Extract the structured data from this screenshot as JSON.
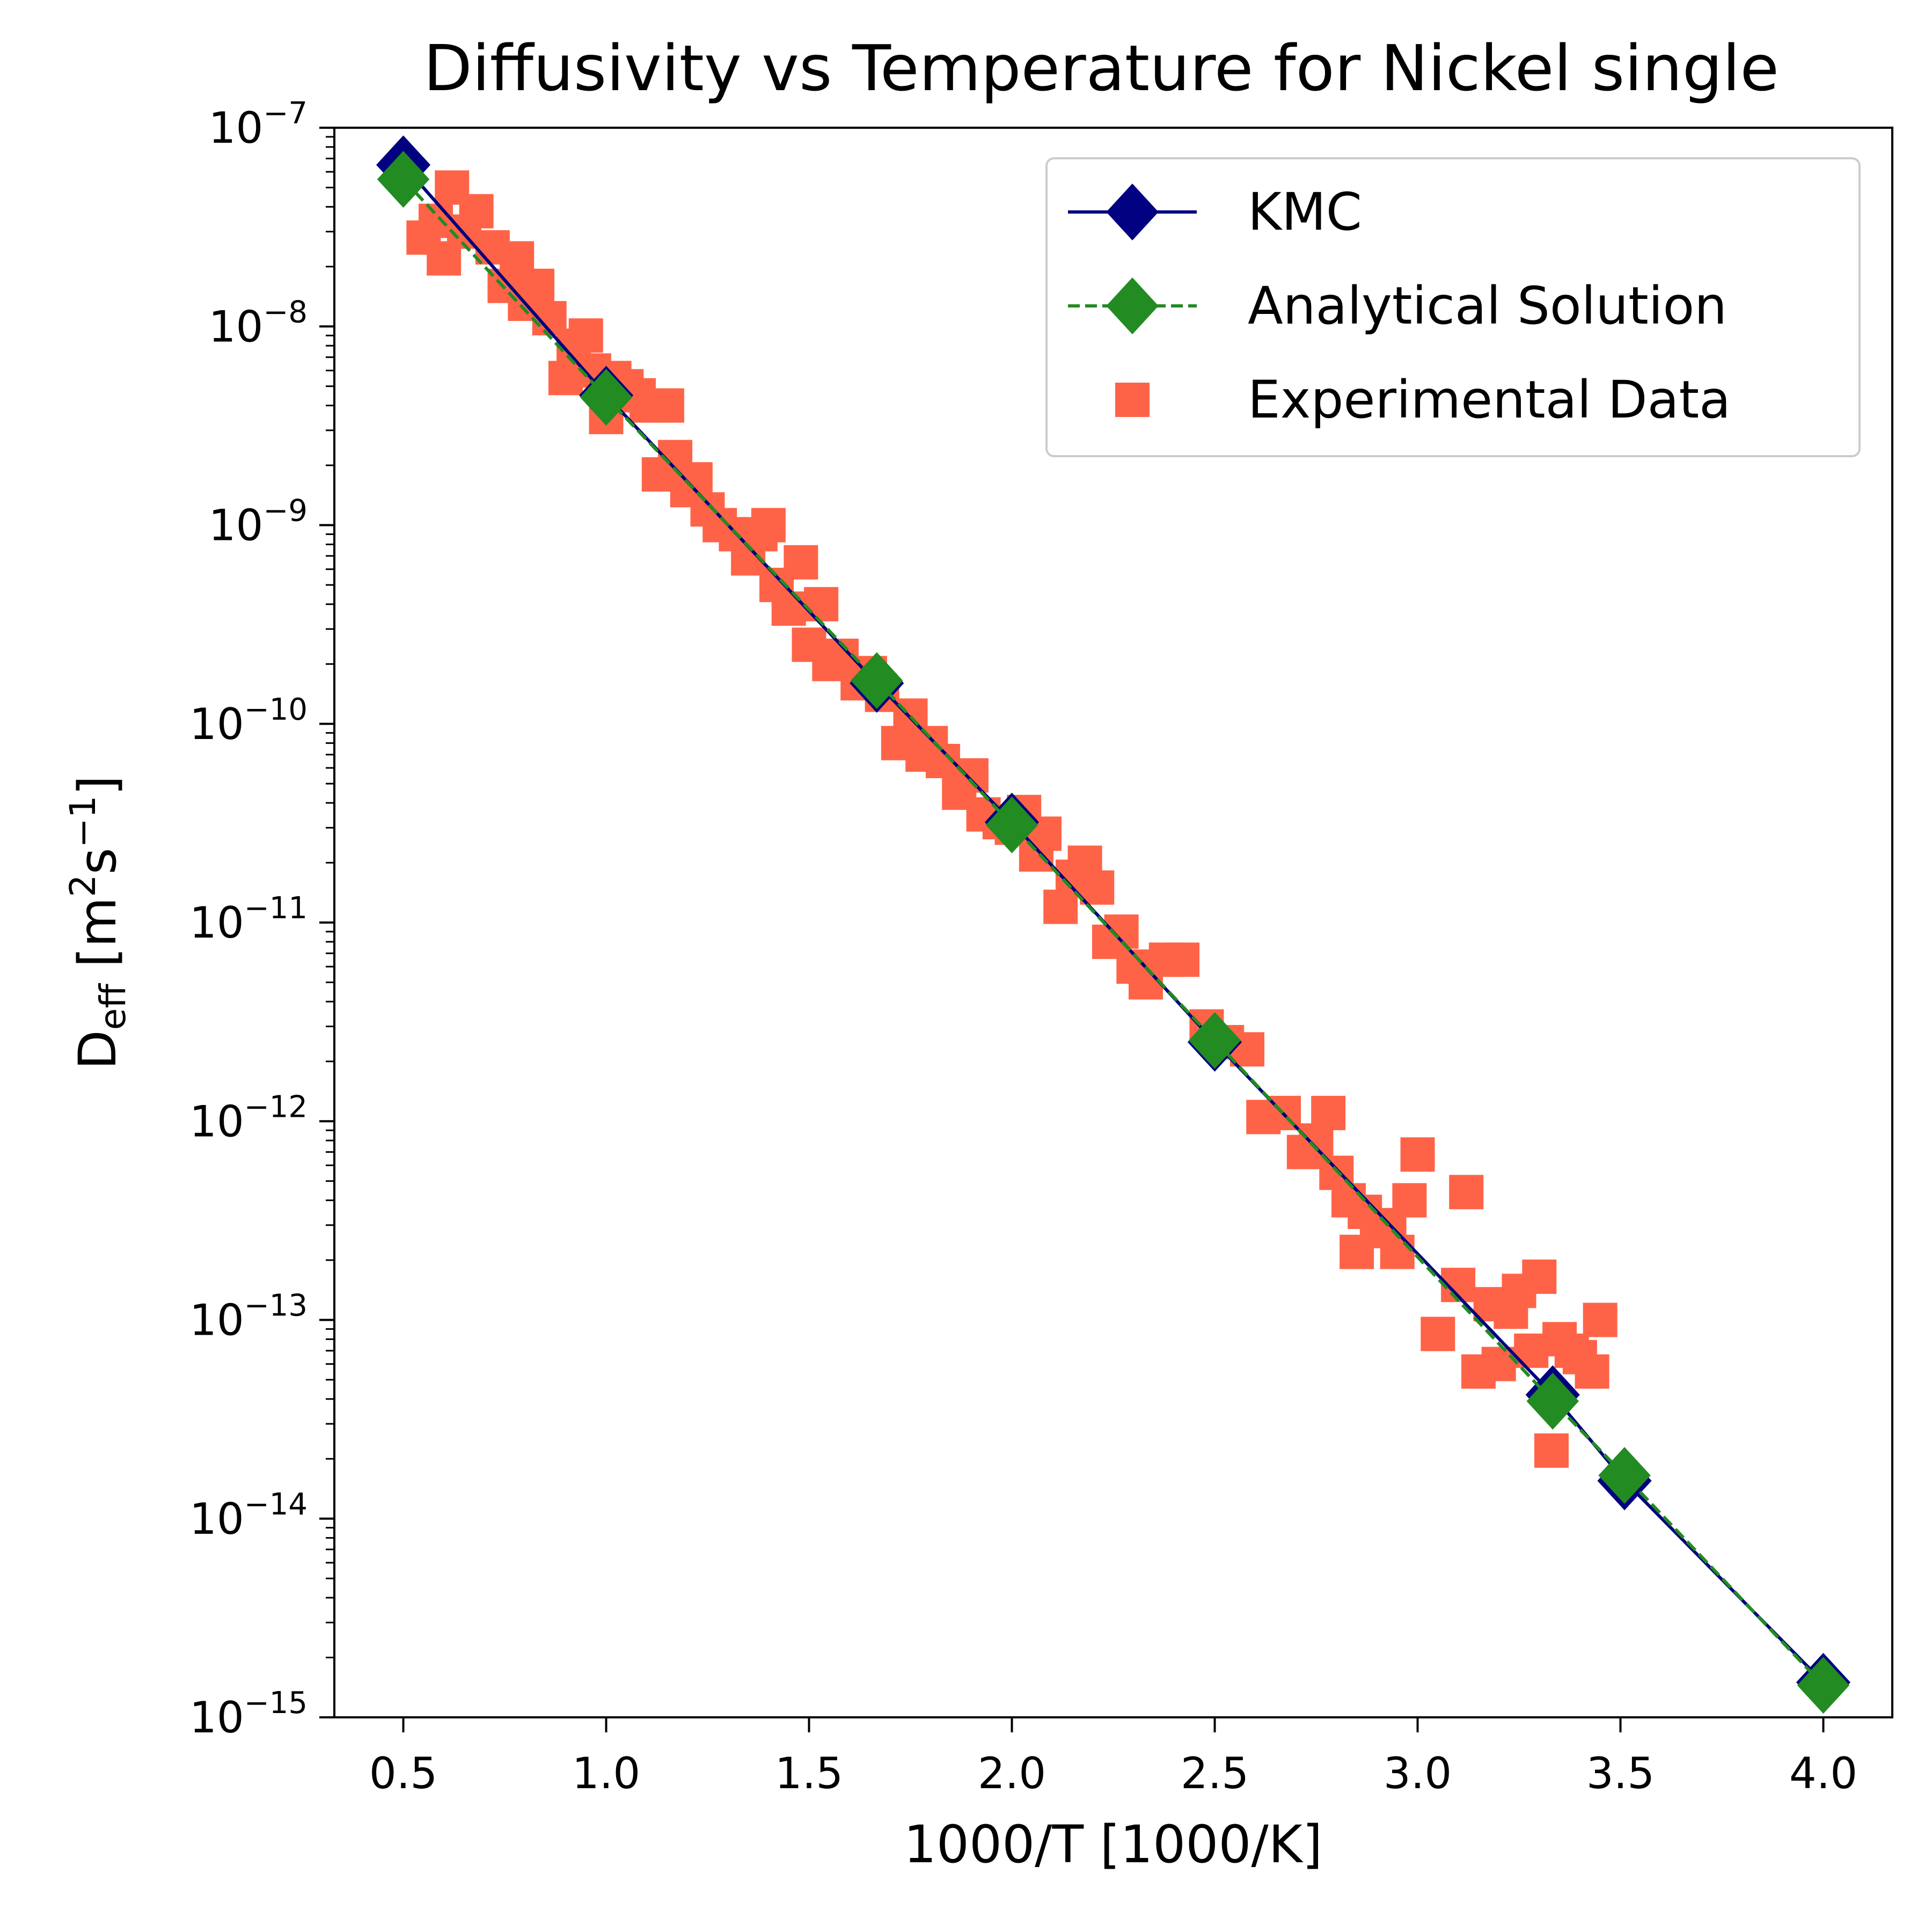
{
  "colors": {
    "kmc": "#000080",
    "analytical": "#228b22",
    "experimental": "#ff6347",
    "axis": "#000000",
    "legend_border": "#cccccc"
  },
  "chart_data": {
    "type": "line",
    "title": "Diffusivity vs Temperature for Nickel single",
    "xlabel": "1000/T [1000/K]",
    "ylabel": "D_eff [m^2 s^-1]",
    "ylabel_parts": {
      "base": "D",
      "sub": "eff",
      "bracket_open": " [m",
      "sup1": "2",
      "mid": "s",
      "sup2": "−1",
      "bracket_close": "]"
    },
    "xlim": [
      0.33,
      4.17
    ],
    "ylim_log10": [
      -15,
      -7
    ],
    "yscale": "log",
    "xticks": [
      0.5,
      1.0,
      1.5,
      2.0,
      2.5,
      3.0,
      3.5,
      4.0
    ],
    "xtick_labels": [
      "0.5",
      "1.0",
      "1.5",
      "2.0",
      "2.5",
      "3.0",
      "3.5",
      "4.0"
    ],
    "yticks_log10": [
      -7,
      -8,
      -9,
      -10,
      -11,
      -12,
      -13,
      -14,
      -15
    ],
    "ytick_labels": [
      {
        "base": "10",
        "exp": "−7"
      },
      {
        "base": "10",
        "exp": "−8"
      },
      {
        "base": "10",
        "exp": "−9"
      },
      {
        "base": "10",
        "exp": "−10"
      },
      {
        "base": "10",
        "exp": "−11"
      },
      {
        "base": "10",
        "exp": "−12"
      },
      {
        "base": "10",
        "exp": "−13"
      },
      {
        "base": "10",
        "exp": "−14"
      },
      {
        "base": "10",
        "exp": "−15"
      }
    ],
    "legend": {
      "position": "upper-right",
      "entries": [
        "KMC",
        "Analytical Solution",
        "Experimental Data"
      ]
    },
    "series": [
      {
        "name": "KMC",
        "style": "solid-line-diamond",
        "x": [
          0.5,
          1.0,
          1.667,
          2.0,
          2.5,
          3.333,
          3.51,
          4.0
        ],
        "y": [
          6.5e-08,
          4.5e-09,
          1.6e-10,
          3.2e-11,
          2.5e-12,
          4.2e-14,
          1.55e-14,
          1.5e-15
        ]
      },
      {
        "name": "Analytical Solution",
        "style": "dashed-line-diamond",
        "x": [
          0.5,
          1.0,
          1.667,
          2.0,
          2.5,
          3.333,
          3.51,
          4.0
        ],
        "y": [
          5.5e-08,
          4.4e-09,
          1.65e-10,
          3.1e-11,
          2.55e-12,
          3.9e-14,
          1.65e-14,
          1.45e-15
        ]
      },
      {
        "name": "Experimental Data",
        "style": "scatter-square",
        "x": [
          0.55,
          0.58,
          0.6,
          0.62,
          0.65,
          0.68,
          0.72,
          0.75,
          0.78,
          0.8,
          0.83,
          0.86,
          0.9,
          0.92,
          0.95,
          0.97,
          1.0,
          1.02,
          1.05,
          1.08,
          1.1,
          1.13,
          1.15,
          1.17,
          1.2,
          1.22,
          1.25,
          1.28,
          1.32,
          1.35,
          1.38,
          1.4,
          1.42,
          1.45,
          1.48,
          1.5,
          1.53,
          1.55,
          1.58,
          1.62,
          1.65,
          1.68,
          1.72,
          1.75,
          1.78,
          1.8,
          1.83,
          1.87,
          1.9,
          1.93,
          1.97,
          2.0,
          2.03,
          2.06,
          2.08,
          2.12,
          2.15,
          2.18,
          2.21,
          2.24,
          2.27,
          2.3,
          2.33,
          2.38,
          2.42,
          2.48,
          2.53,
          2.58,
          2.62,
          2.67,
          2.72,
          2.75,
          2.78,
          2.8,
          2.83,
          2.85,
          2.87,
          2.9,
          2.93,
          2.95,
          2.98,
          3.0,
          3.05,
          3.1,
          3.12,
          3.15,
          3.18,
          3.2,
          3.23,
          3.25,
          3.28,
          3.3,
          3.33,
          3.35,
          3.38,
          3.4,
          3.43,
          3.45
        ],
        "y": [
          2.8e-08,
          3.4e-08,
          2.2e-08,
          5e-08,
          3e-08,
          3.8e-08,
          2.5e-08,
          1.6e-08,
          2.2e-08,
          1.3e-08,
          1.6e-08,
          1.1e-08,
          5.5e-09,
          8e-09,
          9e-09,
          6e-09,
          3.5e-09,
          5.5e-09,
          5e-09,
          4.5e-09,
          4e-09,
          1.8e-09,
          4e-09,
          2.2e-09,
          1.5e-09,
          1.7e-09,
          1.2e-09,
          1e-09,
          9e-10,
          6.8e-10,
          9e-10,
          1e-09,
          5e-10,
          3.8e-10,
          6.5e-10,
          2.5e-10,
          4e-10,
          2e-10,
          2.2e-10,
          1.6e-10,
          1.8e-10,
          1.4e-10,
          8e-11,
          1.1e-10,
          7e-11,
          8e-11,
          6.5e-11,
          4.5e-11,
          5.5e-11,
          3.5e-11,
          3.2e-11,
          3e-11,
          3.6e-11,
          2.2e-11,
          2.8e-11,
          1.2e-11,
          1.7e-11,
          2e-11,
          1.5e-11,
          8e-12,
          9e-12,
          6e-12,
          5e-12,
          6.5e-12,
          6.5e-12,
          3e-12,
          2.5e-12,
          2.3e-12,
          1.05e-12,
          1.1e-12,
          7e-13,
          8e-13,
          1.1e-12,
          5.5e-13,
          4e-13,
          2.2e-13,
          3.5e-13,
          2.8e-13,
          3e-13,
          2.2e-13,
          4e-13,
          6.8e-13,
          8.5e-14,
          1.5e-13,
          4.4e-13,
          5.5e-14,
          1.2e-13,
          6e-14,
          1.1e-13,
          1.4e-13,
          7e-14,
          1.65e-13,
          2.2e-14,
          8e-14,
          7e-14,
          6.5e-14,
          5.5e-14,
          1e-13
        ]
      }
    ]
  }
}
